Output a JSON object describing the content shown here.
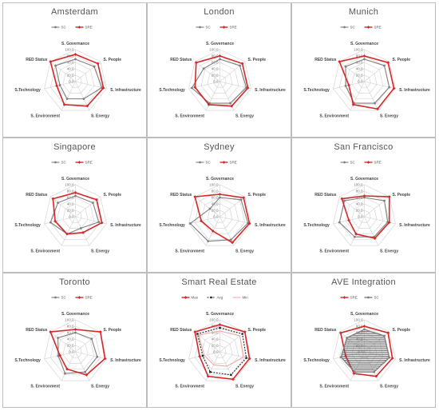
{
  "figure": {
    "panel_count": 9
  },
  "colors": {
    "sc": "#7f7f7f",
    "sre": "#d62728",
    "grid": "#d0d0d0",
    "max": "#d62728",
    "avg": "#222222",
    "min": "#f4a0a0"
  },
  "chart_data": [
    {
      "type": "radar",
      "title": "Amsterdam",
      "axes": [
        "S. Governance",
        "S. People",
        "S. Infrastructure",
        "S. Energy",
        "S. Environment",
        "S.Technology",
        "RED Status"
      ],
      "rlim": [
        0,
        100
      ],
      "ticks": [
        "0.0",
        "20.0",
        "40.0",
        "60.0",
        "80.0",
        "100.0"
      ],
      "legend": [
        "SC",
        "SRE"
      ],
      "series": [
        {
          "name": "SC",
          "style": "sc",
          "values": [
            70,
            75,
            85,
            60,
            60,
            50,
            80
          ]
        },
        {
          "name": "SRE",
          "style": "sre",
          "values": [
            85,
            90,
            90,
            85,
            80,
            60,
            100
          ]
        }
      ]
    },
    {
      "type": "radar",
      "title": "London",
      "axes": [
        "S. Governance",
        "S. People",
        "S. Infrastructure",
        "S. Energy",
        "S. Environment",
        "S.Technology",
        "RED Status"
      ],
      "rlim": [
        0,
        100
      ],
      "ticks": [
        "0.0",
        "20.0",
        "40.0",
        "60.0",
        "80.0",
        "100.0"
      ],
      "legend": [
        "SC",
        "SRE"
      ],
      "series": [
        {
          "name": "SC",
          "style": "sc",
          "values": [
            70,
            80,
            85,
            75,
            75,
            90,
            65
          ]
        },
        {
          "name": "SRE",
          "style": "sre",
          "values": [
            80,
            90,
            90,
            85,
            80,
            80,
            95
          ]
        }
      ]
    },
    {
      "type": "radar",
      "title": "Munich",
      "axes": [
        "S. Governance",
        "S. People",
        "S. Infrastructure",
        "S. Energy",
        "S. Environment",
        "S.Technology",
        "RED Status"
      ],
      "rlim": [
        0,
        100
      ],
      "ticks": [
        "0.0",
        "20.0",
        "40.0",
        "60.0",
        "80.0",
        "100.0"
      ],
      "legend": [
        "SC",
        "SRE"
      ],
      "series": [
        {
          "name": "SC",
          "style": "sc",
          "values": [
            70,
            80,
            80,
            75,
            75,
            60,
            75
          ]
        },
        {
          "name": "SRE",
          "style": "sre",
          "values": [
            80,
            95,
            95,
            95,
            80,
            50,
            100
          ]
        }
      ]
    },
    {
      "type": "radar",
      "title": "Singapore",
      "axes": [
        "S. Governance",
        "S. People",
        "S. Infrastructure",
        "S. Energy",
        "S. Environment",
        "S.Technology",
        "RED Status"
      ],
      "rlim": [
        0,
        100
      ],
      "ticks": [
        "0.0",
        "20.0",
        "40.0",
        "60.0",
        "80.0",
        "100.0"
      ],
      "legend": [
        "SC",
        "SRE"
      ],
      "series": [
        {
          "name": "SC",
          "style": "sc",
          "values": [
            65,
            70,
            75,
            40,
            60,
            80,
            70
          ]
        },
        {
          "name": "SRE",
          "style": "sre",
          "values": [
            75,
            85,
            85,
            55,
            60,
            65,
            90
          ]
        }
      ]
    },
    {
      "type": "radar",
      "title": "Sydney",
      "axes": [
        "S. Governance",
        "S. People",
        "S. Infrastructure",
        "S. Energy",
        "S. Environment",
        "S.Technology",
        "RED Status"
      ],
      "rlim": [
        0,
        100
      ],
      "ticks": [
        "0.0",
        "20.0",
        "40.0",
        "60.0",
        "80.0",
        "100.0"
      ],
      "legend": [
        "SC",
        "SRE"
      ],
      "series": [
        {
          "name": "SC",
          "style": "sc",
          "values": [
            60,
            85,
            90,
            80,
            85,
            95,
            40
          ]
        },
        {
          "name": "SRE",
          "style": "sre",
          "values": [
            70,
            95,
            95,
            90,
            50,
            60,
            100
          ]
        }
      ]
    },
    {
      "type": "radar",
      "title": "San Francisco",
      "axes": [
        "S. Governance",
        "S. People",
        "S. Infrastructure",
        "S. Energy",
        "S. Environment",
        "S.Technology",
        "RED Status"
      ],
      "rlim": [
        0,
        100
      ],
      "ticks": [
        "0.0",
        "20.0",
        "40.0",
        "60.0",
        "80.0",
        "100.0"
      ],
      "legend": [
        "SC",
        "SRE"
      ],
      "series": [
        {
          "name": "SC",
          "style": "sc",
          "values": [
            60,
            80,
            75,
            70,
            70,
            80,
            80
          ]
        },
        {
          "name": "SRE",
          "style": "sre",
          "values": [
            65,
            100,
            80,
            75,
            60,
            50,
            90
          ]
        }
      ]
    },
    {
      "type": "radar",
      "title": "Toronto",
      "axes": [
        "S. Governance",
        "S. People",
        "S. Infrastructure",
        "S. Energy",
        "S. Environment",
        "S.Technology",
        "RED Status"
      ],
      "rlim": [
        0,
        100
      ],
      "ticks": [
        "0.0",
        "20.0",
        "40.0",
        "60.0",
        "80.0",
        "100.0"
      ],
      "legend": [
        "SC",
        "SRE"
      ],
      "series": [
        {
          "name": "SC",
          "style": "sc",
          "values": [
            60,
            65,
            70,
            70,
            75,
            55,
            70
          ]
        },
        {
          "name": "SRE",
          "style": "sre",
          "values": [
            70,
            100,
            95,
            80,
            60,
            50,
            100
          ]
        }
      ]
    },
    {
      "type": "radar",
      "title": "Smart Real Estate",
      "axes": [
        "S. Governance",
        "S. People",
        "S. Infrastructure",
        "S. Energy",
        "S. Environment",
        "S.Technology",
        "RED Status"
      ],
      "rlim": [
        0,
        100
      ],
      "ticks": [
        "0.0",
        "20.0",
        "40.0",
        "60.0",
        "80.0",
        "100.0"
      ],
      "legend": [
        "Max",
        "Avg",
        "Min"
      ],
      "series": [
        {
          "name": "Max",
          "style": "max",
          "values": [
            85,
            100,
            95,
            95,
            85,
            65,
            100
          ]
        },
        {
          "name": "Avg",
          "style": "avg",
          "values": [
            75,
            90,
            85,
            80,
            70,
            55,
            90
          ]
        },
        {
          "name": "Min",
          "style": "min",
          "values": [
            65,
            80,
            75,
            50,
            45,
            50,
            85
          ]
        }
      ]
    },
    {
      "type": "radar",
      "title": "AVE  Integration",
      "axes": [
        "S. Governance",
        "S. People",
        "S. Infrastructure",
        "S. Energy",
        "S. Environment",
        "S.Technology",
        "RED Status"
      ],
      "rlim": [
        0,
        100
      ],
      "ticks": [
        "0.0",
        "20.0",
        "40.0",
        "60.0",
        "80.0",
        "100.0"
      ],
      "legend": [
        "SRE",
        "SC"
      ],
      "series": [
        {
          "name": "SRE",
          "style": "sre",
          "values": [
            80,
            95,
            90,
            85,
            75,
            60,
            95
          ]
        },
        {
          "name": "SC",
          "style": "sc_fill",
          "values": [
            70,
            80,
            80,
            70,
            70,
            75,
            70
          ]
        }
      ]
    }
  ]
}
